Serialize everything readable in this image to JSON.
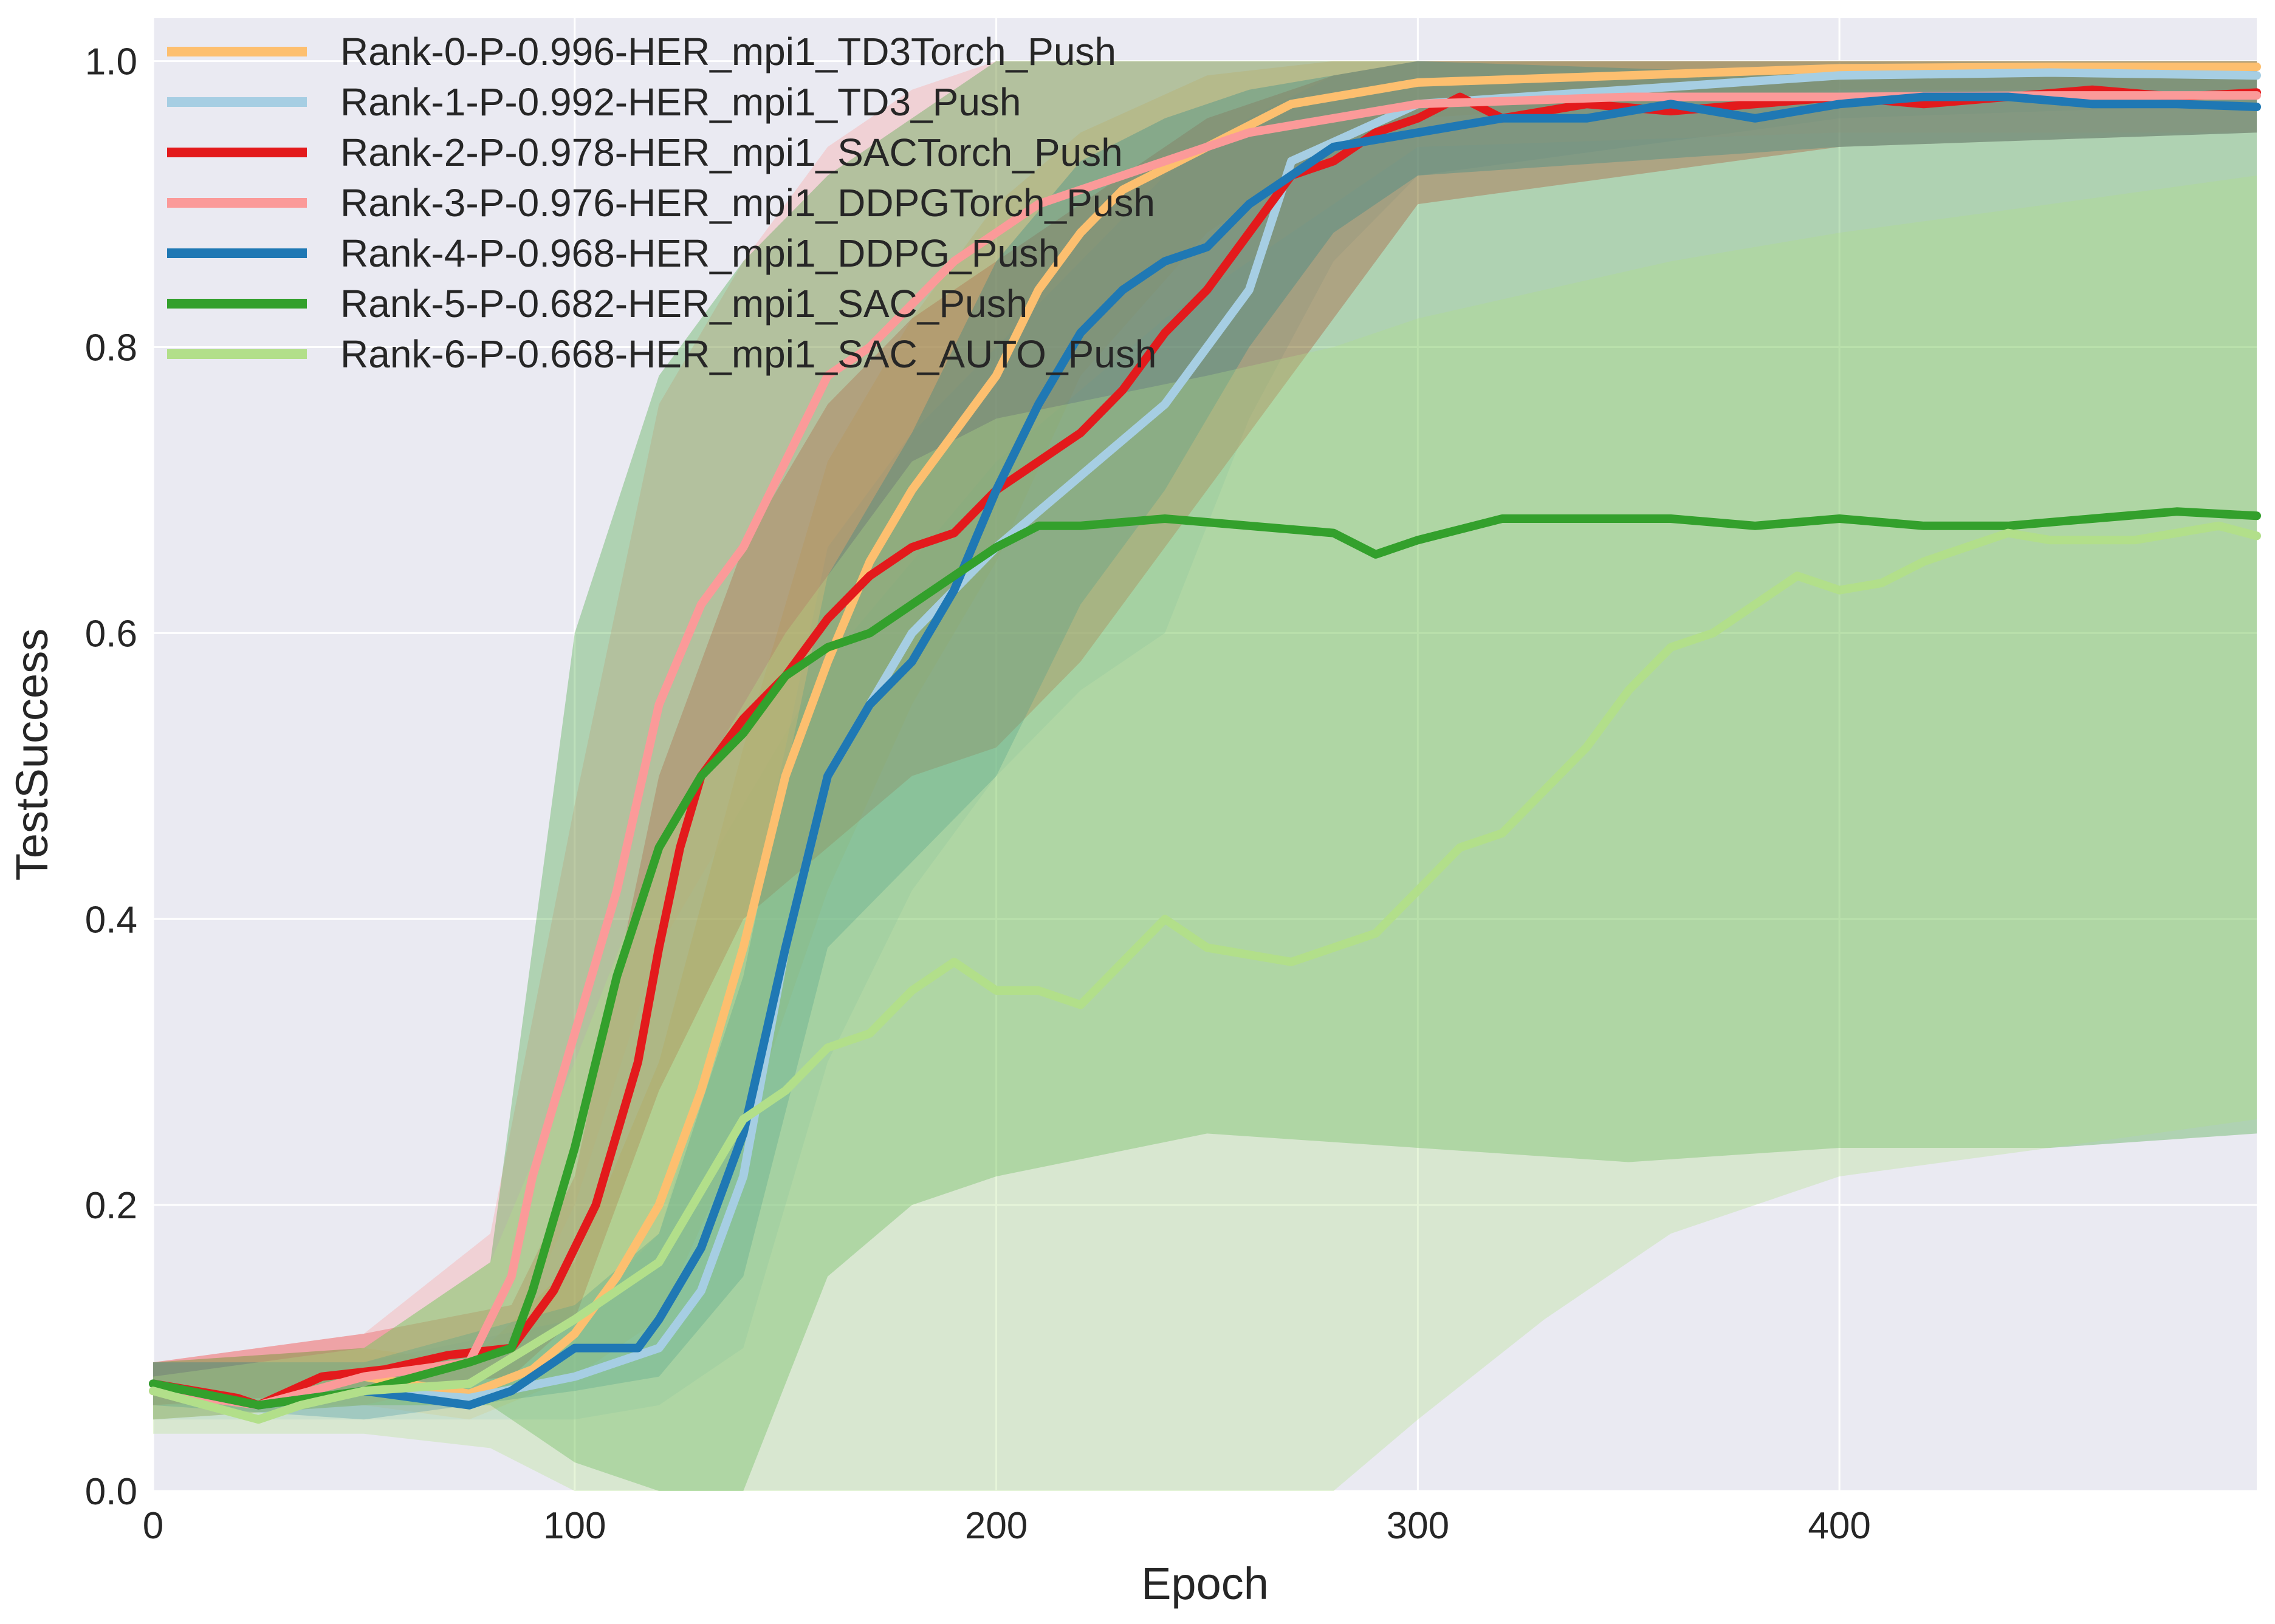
{
  "chart_data": {
    "type": "line",
    "title": "",
    "xlabel": "Epoch",
    "ylabel": "TestSuccess",
    "xlim": [
      0,
      499
    ],
    "ylim": [
      0.0,
      1.03
    ],
    "xticks": [
      0,
      100,
      200,
      300,
      400
    ],
    "xtick_labels": [
      "0",
      "100",
      "200",
      "300",
      "400"
    ],
    "yticks": [
      0.0,
      0.2,
      0.4,
      0.6,
      0.8,
      1.0
    ],
    "ytick_labels": [
      "0.0",
      "0.2",
      "0.4",
      "0.6",
      "0.8",
      "1.0"
    ],
    "grid": true,
    "background": "#eaeaf2",
    "legend_position": "top-left",
    "series": [
      {
        "name": "Rank-0-P-0.996-HER_mpi1_TD3Torch_Push",
        "color": "#fdbf6f",
        "x": [
          0,
          25,
          50,
          75,
          90,
          100,
          110,
          120,
          130,
          140,
          150,
          160,
          170,
          180,
          190,
          200,
          210,
          220,
          230,
          250,
          270,
          300,
          350,
          400,
          450,
          499
        ],
        "y": [
          0.075,
          0.06,
          0.08,
          0.068,
          0.085,
          0.11,
          0.15,
          0.2,
          0.28,
          0.38,
          0.5,
          0.58,
          0.65,
          0.7,
          0.74,
          0.78,
          0.84,
          0.88,
          0.91,
          0.94,
          0.97,
          0.985,
          0.99,
          0.995,
          0.996,
          0.996
        ],
        "band": [
          [
            0,
            0.06,
            0.09
          ],
          [
            50,
            0.06,
            0.1
          ],
          [
            75,
            0.05,
            0.09
          ],
          [
            100,
            0.08,
            0.16
          ],
          [
            120,
            0.12,
            0.3
          ],
          [
            140,
            0.25,
            0.52
          ],
          [
            160,
            0.42,
            0.72
          ],
          [
            180,
            0.55,
            0.82
          ],
          [
            200,
            0.65,
            0.9
          ],
          [
            220,
            0.78,
            0.95
          ],
          [
            250,
            0.88,
            0.99
          ],
          [
            280,
            0.94,
            1.0
          ],
          [
            300,
            0.96,
            1.0
          ],
          [
            400,
            0.98,
            1.0
          ],
          [
            499,
            0.98,
            1.0
          ]
        ]
      },
      {
        "name": "Rank-1-P-0.992-HER_mpi1_TD3_Push",
        "color": "#a6cee3",
        "x": [
          0,
          25,
          50,
          75,
          100,
          120,
          130,
          140,
          150,
          160,
          170,
          180,
          200,
          220,
          240,
          260,
          270,
          300,
          350,
          400,
          450,
          499
        ],
        "y": [
          0.07,
          0.06,
          0.07,
          0.065,
          0.08,
          0.1,
          0.14,
          0.22,
          0.38,
          0.5,
          0.55,
          0.6,
          0.66,
          0.71,
          0.76,
          0.84,
          0.93,
          0.97,
          0.98,
          0.99,
          0.992,
          0.99
        ],
        "band": [
          [
            0,
            0.05,
            0.09
          ],
          [
            50,
            0.05,
            0.09
          ],
          [
            100,
            0.05,
            0.12
          ],
          [
            120,
            0.06,
            0.18
          ],
          [
            140,
            0.1,
            0.38
          ],
          [
            160,
            0.3,
            0.66
          ],
          [
            180,
            0.42,
            0.74
          ],
          [
            200,
            0.5,
            0.8
          ],
          [
            220,
            0.56,
            0.86
          ],
          [
            240,
            0.6,
            0.92
          ],
          [
            260,
            0.75,
            0.96
          ],
          [
            280,
            0.86,
            0.99
          ],
          [
            300,
            0.92,
            1.0
          ],
          [
            400,
            0.96,
            1.0
          ],
          [
            499,
            0.97,
            1.0
          ]
        ]
      },
      {
        "name": "Rank-2-P-0.978-HER_mpi1_SACTorch_Push",
        "color": "#e31a1c",
        "x": [
          0,
          20,
          25,
          40,
          55,
          70,
          85,
          95,
          105,
          115,
          120,
          125,
          130,
          140,
          150,
          160,
          170,
          180,
          190,
          200,
          210,
          220,
          230,
          240,
          250,
          260,
          270,
          280,
          290,
          300,
          310,
          320,
          340,
          360,
          380,
          400,
          420,
          440,
          460,
          480,
          499
        ],
        "y": [
          0.075,
          0.065,
          0.06,
          0.08,
          0.085,
          0.095,
          0.1,
          0.14,
          0.2,
          0.3,
          0.38,
          0.45,
          0.5,
          0.54,
          0.57,
          0.61,
          0.64,
          0.66,
          0.67,
          0.7,
          0.72,
          0.74,
          0.77,
          0.81,
          0.84,
          0.88,
          0.92,
          0.93,
          0.95,
          0.96,
          0.975,
          0.96,
          0.97,
          0.965,
          0.97,
          0.975,
          0.97,
          0.975,
          0.98,
          0.975,
          0.978
        ],
        "band": [
          [
            0,
            0.06,
            0.09
          ],
          [
            50,
            0.07,
            0.11
          ],
          [
            85,
            0.08,
            0.13
          ],
          [
            100,
            0.12,
            0.22
          ],
          [
            120,
            0.28,
            0.5
          ],
          [
            140,
            0.4,
            0.66
          ],
          [
            160,
            0.45,
            0.76
          ],
          [
            180,
            0.5,
            0.82
          ],
          [
            200,
            0.52,
            0.86
          ],
          [
            220,
            0.58,
            0.9
          ],
          [
            250,
            0.7,
            0.96
          ],
          [
            280,
            0.82,
            0.99
          ],
          [
            300,
            0.9,
            1.0
          ],
          [
            400,
            0.94,
            1.0
          ],
          [
            499,
            0.95,
            1.0
          ]
        ]
      },
      {
        "name": "Rank-3-P-0.976-HER_mpi1_DDPGTorch_Push",
        "color": "#fb9a99",
        "x": [
          0,
          25,
          50,
          75,
          85,
          90,
          100,
          110,
          120,
          130,
          140,
          150,
          160,
          170,
          180,
          190,
          200,
          210,
          220,
          240,
          260,
          280,
          300,
          350,
          400,
          450,
          499
        ],
        "y": [
          0.07,
          0.06,
          0.08,
          0.09,
          0.15,
          0.22,
          0.32,
          0.42,
          0.55,
          0.62,
          0.66,
          0.72,
          0.78,
          0.8,
          0.83,
          0.86,
          0.88,
          0.9,
          0.91,
          0.93,
          0.95,
          0.96,
          0.97,
          0.975,
          0.975,
          0.976,
          0.976
        ],
        "band": [
          [
            0,
            0.05,
            0.09
          ],
          [
            50,
            0.06,
            0.11
          ],
          [
            80,
            0.08,
            0.18
          ],
          [
            100,
            0.2,
            0.48
          ],
          [
            120,
            0.38,
            0.76
          ],
          [
            140,
            0.48,
            0.86
          ],
          [
            160,
            0.58,
            0.94
          ],
          [
            180,
            0.65,
            0.98
          ],
          [
            200,
            0.72,
            1.0
          ],
          [
            240,
            0.82,
            1.0
          ],
          [
            280,
            0.9,
            1.0
          ],
          [
            300,
            0.94,
            1.0
          ],
          [
            400,
            0.95,
            1.0
          ],
          [
            499,
            0.95,
            1.0
          ]
        ]
      },
      {
        "name": "Rank-4-P-0.968-HER_mpi1_DDPG_Push",
        "color": "#1f78b4",
        "x": [
          0,
          25,
          50,
          75,
          85,
          100,
          115,
          120,
          130,
          140,
          150,
          160,
          170,
          180,
          190,
          200,
          210,
          220,
          230,
          240,
          250,
          260,
          270,
          280,
          300,
          320,
          340,
          360,
          380,
          400,
          420,
          440,
          460,
          480,
          499
        ],
        "y": [
          0.075,
          0.06,
          0.07,
          0.06,
          0.07,
          0.1,
          0.1,
          0.12,
          0.17,
          0.25,
          0.38,
          0.5,
          0.55,
          0.58,
          0.63,
          0.7,
          0.76,
          0.81,
          0.84,
          0.86,
          0.87,
          0.9,
          0.92,
          0.94,
          0.95,
          0.96,
          0.96,
          0.97,
          0.96,
          0.97,
          0.975,
          0.975,
          0.97,
          0.97,
          0.968
        ],
        "band": [
          [
            0,
            0.06,
            0.09
          ],
          [
            50,
            0.05,
            0.09
          ],
          [
            100,
            0.07,
            0.13
          ],
          [
            120,
            0.08,
            0.18
          ],
          [
            140,
            0.15,
            0.36
          ],
          [
            160,
            0.38,
            0.64
          ],
          [
            180,
            0.44,
            0.74
          ],
          [
            200,
            0.5,
            0.86
          ],
          [
            220,
            0.62,
            0.93
          ],
          [
            240,
            0.7,
            0.96
          ],
          [
            260,
            0.8,
            0.98
          ],
          [
            280,
            0.88,
            0.99
          ],
          [
            300,
            0.92,
            1.0
          ],
          [
            400,
            0.94,
            0.99
          ],
          [
            499,
            0.95,
            0.99
          ]
        ]
      },
      {
        "name": "Rank-5-P-0.682-HER_mpi1_SAC_Push",
        "color": "#33a02c",
        "x": [
          0,
          25,
          50,
          75,
          85,
          90,
          100,
          110,
          120,
          130,
          140,
          150,
          160,
          170,
          180,
          190,
          200,
          210,
          220,
          240,
          260,
          280,
          290,
          300,
          320,
          340,
          360,
          380,
          400,
          420,
          440,
          460,
          480,
          499
        ],
        "y": [
          0.075,
          0.06,
          0.07,
          0.09,
          0.1,
          0.14,
          0.24,
          0.36,
          0.45,
          0.5,
          0.53,
          0.57,
          0.59,
          0.6,
          0.62,
          0.64,
          0.66,
          0.675,
          0.675,
          0.68,
          0.675,
          0.67,
          0.655,
          0.665,
          0.68,
          0.68,
          0.68,
          0.675,
          0.68,
          0.675,
          0.675,
          0.68,
          0.685,
          0.682
        ],
        "band": [
          [
            0,
            0.05,
            0.09
          ],
          [
            50,
            0.06,
            0.1
          ],
          [
            80,
            0.06,
            0.16
          ],
          [
            100,
            0.02,
            0.6
          ],
          [
            120,
            0.0,
            0.78
          ],
          [
            140,
            0.0,
            0.86
          ],
          [
            160,
            0.15,
            0.92
          ],
          [
            180,
            0.2,
            0.96
          ],
          [
            200,
            0.22,
            1.0
          ],
          [
            250,
            0.25,
            1.0
          ],
          [
            300,
            0.24,
            1.0
          ],
          [
            350,
            0.23,
            1.0
          ],
          [
            400,
            0.24,
            1.0
          ],
          [
            450,
            0.24,
            1.0
          ],
          [
            499,
            0.25,
            1.0
          ]
        ]
      },
      {
        "name": "Rank-6-P-0.668-HER_mpi1_SAC_AUTO_Push",
        "color": "#b2df8a",
        "x": [
          0,
          25,
          35,
          50,
          75,
          100,
          120,
          130,
          140,
          150,
          160,
          170,
          180,
          190,
          200,
          210,
          220,
          240,
          250,
          270,
          290,
          300,
          310,
          320,
          330,
          340,
          350,
          360,
          370,
          380,
          390,
          400,
          410,
          420,
          430,
          440,
          450,
          460,
          470,
          480,
          490,
          499
        ],
        "y": [
          0.07,
          0.05,
          0.06,
          0.07,
          0.075,
          0.12,
          0.16,
          0.21,
          0.26,
          0.28,
          0.31,
          0.32,
          0.35,
          0.37,
          0.35,
          0.35,
          0.34,
          0.4,
          0.38,
          0.37,
          0.39,
          0.42,
          0.45,
          0.46,
          0.49,
          0.52,
          0.56,
          0.59,
          0.6,
          0.62,
          0.64,
          0.63,
          0.635,
          0.65,
          0.66,
          0.67,
          0.665,
          0.665,
          0.665,
          0.67,
          0.675,
          0.668
        ],
        "band": [
          [
            0,
            0.04,
            0.08
          ],
          [
            50,
            0.04,
            0.1
          ],
          [
            80,
            0.03,
            0.16
          ],
          [
            100,
            0.0,
            0.3
          ],
          [
            120,
            0.0,
            0.45
          ],
          [
            150,
            0.0,
            0.6
          ],
          [
            180,
            0.0,
            0.72
          ],
          [
            200,
            0.0,
            0.75
          ],
          [
            250,
            0.0,
            0.78
          ],
          [
            280,
            0.0,
            0.8
          ],
          [
            300,
            0.05,
            0.82
          ],
          [
            330,
            0.12,
            0.84
          ],
          [
            360,
            0.18,
            0.86
          ],
          [
            400,
            0.22,
            0.88
          ],
          [
            450,
            0.24,
            0.9
          ],
          [
            499,
            0.26,
            0.92
          ]
        ]
      }
    ]
  }
}
